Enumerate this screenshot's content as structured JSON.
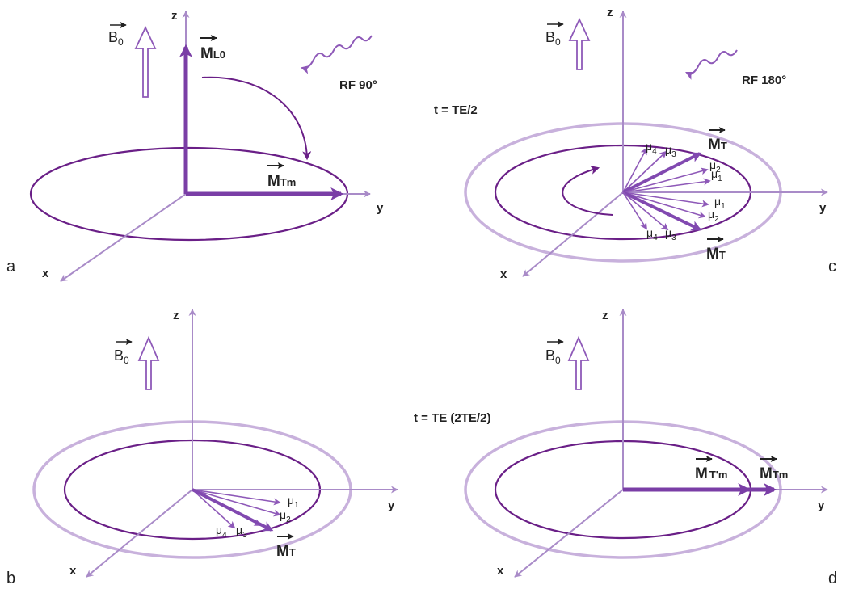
{
  "panels": {
    "a": {
      "label": "a",
      "b0": {
        "text": "B",
        "sub": "0"
      },
      "axes": {
        "x": "x",
        "y": "y",
        "z": "z"
      },
      "rf": "RF 90°",
      "vectors": {
        "ml0": {
          "main": "M",
          "sub": "L0"
        },
        "mtm": {
          "main": "M",
          "sub": "Tm"
        }
      }
    },
    "b": {
      "label": "b",
      "b0": {
        "text": "B",
        "sub": "0"
      },
      "axes": {
        "x": "x",
        "y": "y",
        "z": "z"
      },
      "mu": [
        {
          "main": "μ",
          "sub": "1"
        },
        {
          "main": "μ",
          "sub": "2"
        },
        {
          "main": "μ",
          "sub": "3"
        },
        {
          "main": "μ",
          "sub": "4"
        }
      ],
      "vectors": {
        "mt": {
          "main": "M",
          "sub": "T"
        }
      }
    },
    "c": {
      "label": "c",
      "b0": {
        "text": "B",
        "sub": "0"
      },
      "axes": {
        "x": "x",
        "y": "y",
        "z": "z"
      },
      "rf": "RF 180°",
      "time": "t = TE/2",
      "mu_upper": [
        {
          "main": "μ",
          "sub": "4"
        },
        {
          "main": "μ",
          "sub": "3"
        },
        {
          "main": "μ",
          "sub": "2"
        },
        {
          "main": "μ",
          "sub": "1"
        }
      ],
      "mu_lower": [
        {
          "main": "μ",
          "sub": "1"
        },
        {
          "main": "μ",
          "sub": "2"
        },
        {
          "main": "μ",
          "sub": "3"
        },
        {
          "main": "μ",
          "sub": "4"
        }
      ],
      "vectors": {
        "mt_upper": {
          "main": "M",
          "sub": "T"
        },
        "mt_lower": {
          "main": "M",
          "sub": "T"
        }
      }
    },
    "d": {
      "label": "d",
      "b0": {
        "text": "B",
        "sub": "0"
      },
      "axes": {
        "x": "x",
        "y": "y",
        "z": "z"
      },
      "time": "t = TE (2TE/2)",
      "vectors": {
        "mtpm": {
          "main": "M",
          "sub": "T'm"
        },
        "mtm": {
          "main": "M",
          "sub": "Tm"
        }
      }
    }
  }
}
